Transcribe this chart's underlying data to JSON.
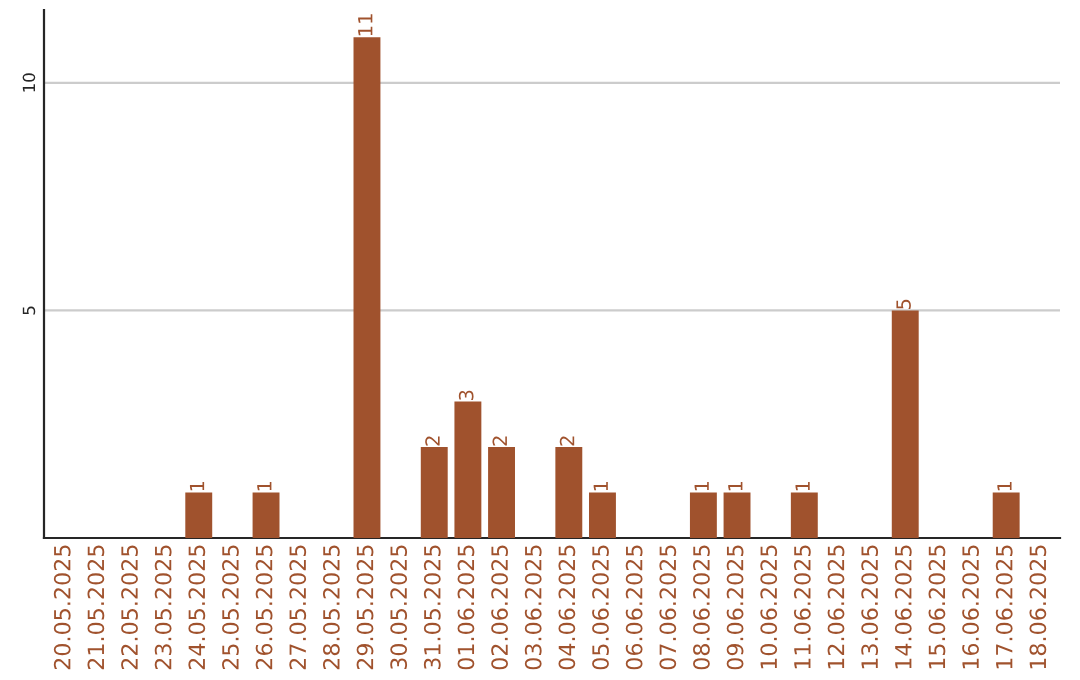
{
  "chart_data": {
    "type": "bar",
    "categories": [
      "20.05.2025",
      "21.05.2025",
      "22.05.2025",
      "23.05.2025",
      "24.05.2025",
      "25.05.2025",
      "26.05.2025",
      "27.05.2025",
      "28.05.2025",
      "29.05.2025",
      "30.05.2025",
      "31.05.2025",
      "01.06.2025",
      "02.06.2025",
      "03.06.2025",
      "04.06.2025",
      "05.06.2025",
      "06.06.2025",
      "07.06.2025",
      "08.06.2025",
      "09.06.2025",
      "10.06.2025",
      "11.06.2025",
      "12.06.2025",
      "13.06.2025",
      "14.06.2025",
      "15.06.2025",
      "16.06.2025",
      "17.06.2025",
      "18.06.2025"
    ],
    "values": [
      0,
      0,
      0,
      0,
      1,
      0,
      1,
      0,
      0,
      11,
      0,
      2,
      3,
      2,
      0,
      2,
      1,
      0,
      0,
      1,
      1,
      0,
      1,
      0,
      0,
      5,
      0,
      0,
      1,
      0
    ],
    "value_labels": [
      null,
      null,
      null,
      null,
      "1",
      null,
      "1",
      null,
      null,
      "11",
      null,
      "2",
      "3",
      "2",
      null,
      "2",
      "1",
      null,
      null,
      "1",
      "1",
      null,
      "1",
      null,
      null,
      "5",
      null,
      null,
      "1",
      null
    ],
    "color": "#a0522d",
    "ylim": [
      0,
      11.6
    ],
    "yticks": [
      5,
      10
    ],
    "grid": "y"
  }
}
